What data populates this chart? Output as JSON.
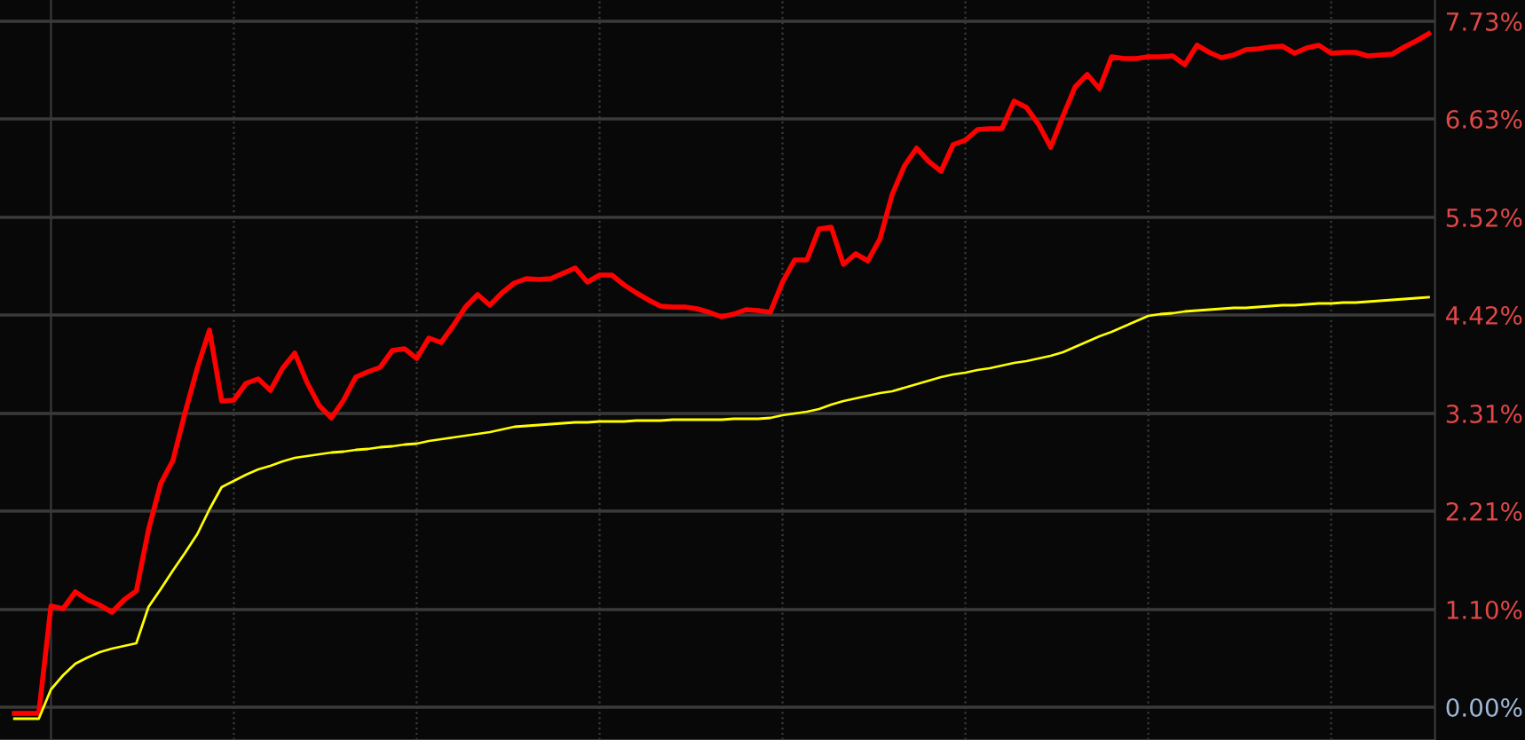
{
  "chart_data": {
    "type": "line",
    "categories": [
      null,
      null,
      null,
      null,
      null,
      null,
      null,
      null,
      null,
      null,
      null,
      null,
      null,
      null,
      null,
      null,
      null,
      null,
      null,
      null,
      null,
      null,
      null,
      null,
      null,
      null,
      null,
      null,
      null,
      null,
      null,
      null,
      null,
      null,
      null,
      null,
      null,
      null,
      null,
      null,
      null,
      null,
      null,
      null,
      null,
      null,
      null,
      null,
      null,
      null,
      null,
      null,
      null,
      null,
      null,
      null,
      null,
      null,
      null,
      null,
      null,
      null,
      null,
      null,
      null,
      null,
      null,
      null,
      null,
      null,
      null,
      null,
      null,
      null,
      null,
      null,
      null,
      null,
      null,
      null,
      null,
      null,
      null,
      null,
      null,
      null,
      null,
      null,
      null,
      null,
      null,
      null,
      null,
      null,
      null,
      null,
      null,
      null,
      null,
      null,
      null,
      null,
      null,
      null,
      null,
      null,
      null,
      null,
      null,
      null,
      null,
      null,
      null,
      null,
      null,
      null,
      null
    ],
    "ylim": [
      -0.37,
      7.97
    ],
    "yticks": [
      {
        "value": 0,
        "label": "0.00%"
      },
      {
        "value": 1.1,
        "label": "1.10%"
      },
      {
        "value": 2.21,
        "label": "2.21%"
      },
      {
        "value": 3.31,
        "label": "3.31%"
      },
      {
        "value": 4.42,
        "label": "4.42%"
      },
      {
        "value": 5.52,
        "label": "5.52%"
      },
      {
        "value": 6.63,
        "label": "6.63%"
      },
      {
        "value": 7.73,
        "label": "7.73%"
      }
    ],
    "grid": true,
    "line_style": "solid",
    "series": [
      {
        "color": "#ff0000",
        "values": [
          -0.07,
          -0.07,
          -0.07,
          1.14,
          1.11,
          1.3,
          1.21,
          1.15,
          1.07,
          1.21,
          1.31,
          2.0,
          2.52,
          2.78,
          3.32,
          3.82,
          4.25,
          3.45,
          3.46,
          3.65,
          3.7,
          3.57,
          3.82,
          3.99,
          3.66,
          3.4,
          3.26,
          3.46,
          3.72,
          3.78,
          3.83,
          4.02,
          4.04,
          3.93,
          4.16,
          4.11,
          4.3,
          4.51,
          4.65,
          4.53,
          4.67,
          4.78,
          4.83,
          4.82,
          4.83,
          4.89,
          4.95,
          4.79,
          4.87,
          4.87,
          4.76,
          4.67,
          4.59,
          4.52,
          4.51,
          4.51,
          4.49,
          4.45,
          4.4,
          4.43,
          4.48,
          4.47,
          4.45,
          4.79,
          5.04,
          5.04,
          5.39,
          5.41,
          4.99,
          5.11,
          5.03,
          5.28,
          5.78,
          6.1,
          6.3,
          6.15,
          6.04,
          6.34,
          6.39,
          6.51,
          6.52,
          6.52,
          6.83,
          6.76,
          6.57,
          6.31,
          6.66,
          6.99,
          7.13,
          6.97,
          7.33,
          7.31,
          7.31,
          7.33,
          7.33,
          7.34,
          7.24,
          7.46,
          7.38,
          7.32,
          7.35,
          7.41,
          7.42,
          7.44,
          7.45,
          7.37,
          7.43,
          7.46,
          7.37,
          7.38,
          7.38,
          7.34,
          7.35,
          7.36,
          7.44,
          7.51,
          7.59
        ]
      },
      {
        "color": "#ffff00",
        "values": [
          -0.13,
          -0.13,
          -0.13,
          0.2,
          0.36,
          0.49,
          0.56,
          0.62,
          0.66,
          0.69,
          0.72,
          1.13,
          1.33,
          1.54,
          1.74,
          1.95,
          2.23,
          2.48,
          2.55,
          2.62,
          2.68,
          2.72,
          2.77,
          2.81,
          2.83,
          2.85,
          2.87,
          2.88,
          2.9,
          2.91,
          2.93,
          2.94,
          2.96,
          2.97,
          3.0,
          3.02,
          3.04,
          3.06,
          3.08,
          3.1,
          3.13,
          3.16,
          3.17,
          3.18,
          3.19,
          3.2,
          3.21,
          3.21,
          3.22,
          3.22,
          3.22,
          3.23,
          3.23,
          3.23,
          3.24,
          3.24,
          3.24,
          3.24,
          3.24,
          3.25,
          3.25,
          3.25,
          3.26,
          3.29,
          3.31,
          3.33,
          3.36,
          3.41,
          3.45,
          3.48,
          3.51,
          3.54,
          3.56,
          3.6,
          3.64,
          3.68,
          3.72,
          3.75,
          3.77,
          3.8,
          3.82,
          3.85,
          3.88,
          3.9,
          3.93,
          3.96,
          4.0,
          4.06,
          4.12,
          4.18,
          4.23,
          4.29,
          4.35,
          4.41,
          4.43,
          4.44,
          4.46,
          4.47,
          4.48,
          4.49,
          4.5,
          4.5,
          4.51,
          4.52,
          4.53,
          4.53,
          4.54,
          4.55,
          4.55,
          4.56,
          4.56,
          4.57,
          4.58,
          4.59,
          4.6,
          4.61,
          4.62
        ]
      }
    ]
  }
}
